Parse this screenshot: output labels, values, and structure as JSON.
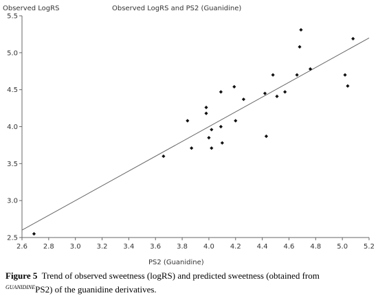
{
  "chart_data": {
    "type": "scatter",
    "title": "Observed LogRS and PS2 (Guanidine)",
    "ylabel": "Observed LogRS",
    "xlabel": "PS2 (Guanidine)",
    "xlim": [
      2.6,
      5.2
    ],
    "ylim": [
      2.5,
      5.5
    ],
    "x_ticks": [
      "2.6",
      "2.8",
      "3.0",
      "3.2",
      "3.4",
      "3.6",
      "3.8",
      "4.0",
      "4.2",
      "4.4",
      "4.6",
      "4.8",
      "5.0",
      "5.2"
    ],
    "y_ticks": [
      "2.5",
      "3.0",
      "3.5",
      "4.0",
      "4.5",
      "5.0",
      "5.5"
    ],
    "grid": false,
    "points": [
      {
        "x": 2.69,
        "y": 2.55
      },
      {
        "x": 3.66,
        "y": 3.6
      },
      {
        "x": 3.84,
        "y": 4.08
      },
      {
        "x": 3.87,
        "y": 3.71
      },
      {
        "x": 3.98,
        "y": 4.26
      },
      {
        "x": 3.98,
        "y": 4.18
      },
      {
        "x": 4.0,
        "y": 3.85
      },
      {
        "x": 4.02,
        "y": 3.96
      },
      {
        "x": 4.02,
        "y": 3.71
      },
      {
        "x": 4.09,
        "y": 4.47
      },
      {
        "x": 4.09,
        "y": 4.0
      },
      {
        "x": 4.1,
        "y": 3.78
      },
      {
        "x": 4.19,
        "y": 4.54
      },
      {
        "x": 4.2,
        "y": 4.08
      },
      {
        "x": 4.26,
        "y": 4.37
      },
      {
        "x": 4.42,
        "y": 4.45
      },
      {
        "x": 4.43,
        "y": 3.87
      },
      {
        "x": 4.48,
        "y": 4.7
      },
      {
        "x": 4.51,
        "y": 4.41
      },
      {
        "x": 4.57,
        "y": 4.47
      },
      {
        "x": 4.66,
        "y": 4.7
      },
      {
        "x": 4.68,
        "y": 5.08
      },
      {
        "x": 4.69,
        "y": 5.31
      },
      {
        "x": 4.76,
        "y": 4.78
      },
      {
        "x": 5.02,
        "y": 4.7
      },
      {
        "x": 5.04,
        "y": 4.55
      },
      {
        "x": 5.08,
        "y": 5.19
      }
    ],
    "trend_line": {
      "x": [
        2.6,
        5.2
      ],
      "y": [
        2.6,
        5.2
      ]
    }
  },
  "caption": {
    "label": "Figure 5",
    "text_part1": "Trend of observed sweetness (logRS) and predicted sweetness (obtained from",
    "superscript": "GUANIDINE",
    "text_part2": "PS2) of the guanidine derivatives."
  },
  "colors": {
    "axis": "#666666",
    "points": "#111111",
    "trend_line": "#666666",
    "text": "#333333"
  }
}
